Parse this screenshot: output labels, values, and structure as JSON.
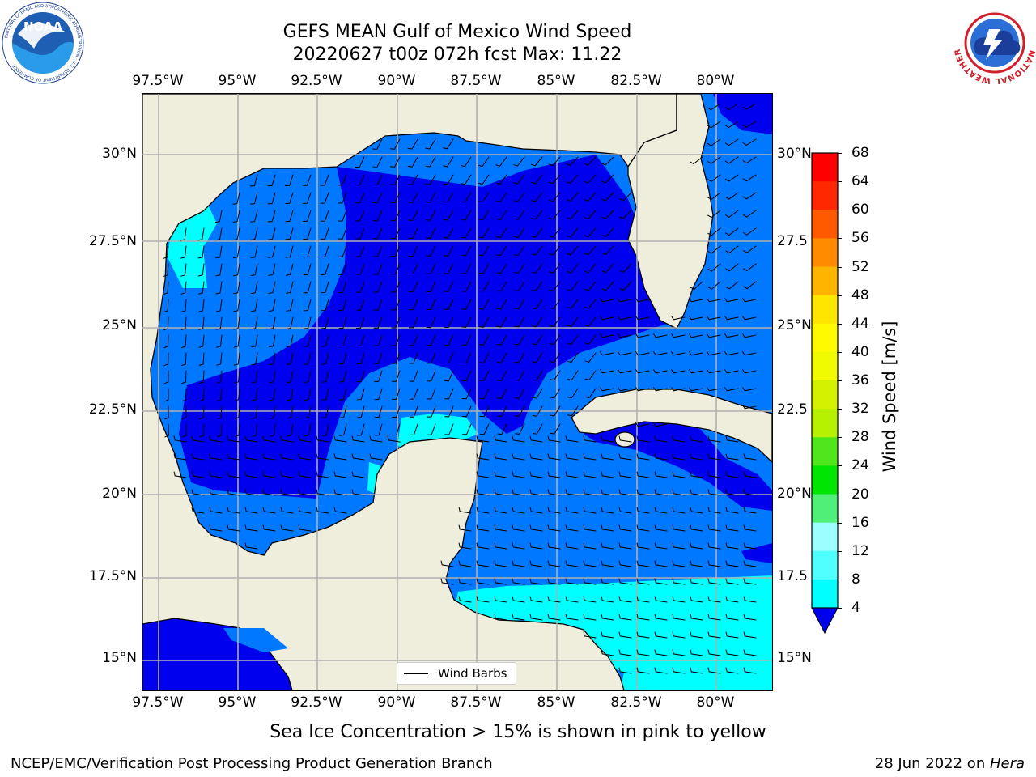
{
  "header": {
    "title_line1": "GEFS MEAN Gulf of Mexico Wind Speed",
    "title_line2": "20220627 t00z 072h fcst   Max: 11.22"
  },
  "logos": {
    "left_logo_text": "NOAA",
    "left_ring_text": "NATIONAL OCEANIC AND ATMOSPHERIC ADMINISTRATION · U.S. DEPARTMENT OF COMMERCE",
    "right_ring_text": "NATIONAL WEATHER SERVICE"
  },
  "map": {
    "lon_labels_top": [
      "97.5°W",
      "95°W",
      "92.5°W",
      "90°W",
      "87.5°W",
      "85°W",
      "82.5°W",
      "80°W"
    ],
    "lon_labels_bottom": [
      "97.5°W",
      "95°W",
      "92.5°W",
      "90°W",
      "87.5°W",
      "85°W",
      "82.5°W",
      "80°W"
    ],
    "lat_labels_left": [
      "30°N",
      "27.5°N",
      "25°N",
      "22.5°N",
      "20°N",
      "17.5°N",
      "15°N"
    ],
    "lat_labels_right": [
      "30°N",
      "27.5",
      "25°N",
      "22.5",
      "20°N",
      "17.5",
      "15°N"
    ],
    "land_color": "#efeddc",
    "grid_color": "#b0b0b0"
  },
  "colorbar": {
    "label": "Wind Speed [m/s]",
    "ticks": [
      "68",
      "64",
      "60",
      "56",
      "52",
      "48",
      "44",
      "40",
      "36",
      "32",
      "28",
      "24",
      "20",
      "16",
      "12",
      "8",
      "4"
    ],
    "colors": [
      "#ff0000",
      "#ff2800",
      "#ff5a00",
      "#ff8c00",
      "#ffb400",
      "#ffe600",
      "#fffa00",
      "#f0fa00",
      "#d2f000",
      "#b4f000",
      "#50e61e",
      "#00e600",
      "#50f078",
      "#9bffff",
      "#50ffff",
      "#00ffff",
      "#0078ff"
    ],
    "under_color": "#0000ee"
  },
  "legend": {
    "label": "Wind Barbs"
  },
  "captions": {
    "sea_ice_note": "Sea Ice Concentration > 15% is shown in pink to yellow",
    "credit": "NCEP/EMC/Verification Post Processing Product Generation Branch",
    "date_prefix": "28 Jun 2022 on ",
    "date_machine": "Hera"
  }
}
